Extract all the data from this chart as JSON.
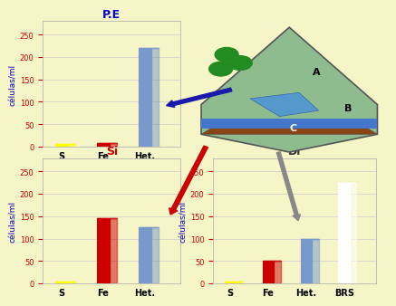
{
  "background_color": "#f5f5c8",
  "ylabel": "células/ml",
  "charts": {
    "PE": {
      "title": "P.E",
      "title_color": "#0000cc",
      "bars": [
        {
          "label": "S",
          "value": 5,
          "color": "#ffff00"
        },
        {
          "label": "Fe",
          "value": 8,
          "color": "#cc0000"
        },
        {
          "label": "Het.",
          "value": 220,
          "color": "#7799cc"
        }
      ],
      "ylim": [
        0,
        280
      ],
      "yticks": [
        0,
        50,
        100,
        150,
        200,
        250
      ]
    },
    "Si": {
      "title": "Si",
      "title_color": "#cc0000",
      "bars": [
        {
          "label": "S",
          "value": 5,
          "color": "#ffff00"
        },
        {
          "label": "Fe",
          "value": 145,
          "color": "#cc0000"
        },
        {
          "label": "Het.",
          "value": 125,
          "color": "#7799cc"
        }
      ],
      "ylim": [
        0,
        280
      ],
      "yticks": [
        0,
        50,
        100,
        150,
        200,
        250
      ]
    },
    "Di": {
      "title": "Di",
      "title_color": "#333333",
      "bars": [
        {
          "label": "S",
          "value": 5,
          "color": "#ffff00"
        },
        {
          "label": "Fe",
          "value": 50,
          "color": "#cc0000"
        },
        {
          "label": "Het.",
          "value": 100,
          "color": "#7799cc"
        },
        {
          "label": "BRS",
          "value": 225,
          "color": "#ffffff",
          "edgecolor": "#cc0000"
        }
      ],
      "ylim": [
        0,
        280
      ],
      "yticks": [
        0,
        50,
        100,
        150,
        200,
        250
      ]
    }
  },
  "arrow_colors": {
    "PE_arrow": "#1a1aaa",
    "Si_arrow": "#cc0000",
    "Di_arrow": "#888888"
  },
  "map_region_colors": {
    "A_label": "A",
    "B_label": "B",
    "C_label": "C"
  },
  "tick_color": "#cc0000",
  "grid_color": "#cccccc",
  "axis_label_color": "#0000cc",
  "label_fontsize": 7,
  "title_fontsize": 9,
  "bar_label_fontsize": 7
}
